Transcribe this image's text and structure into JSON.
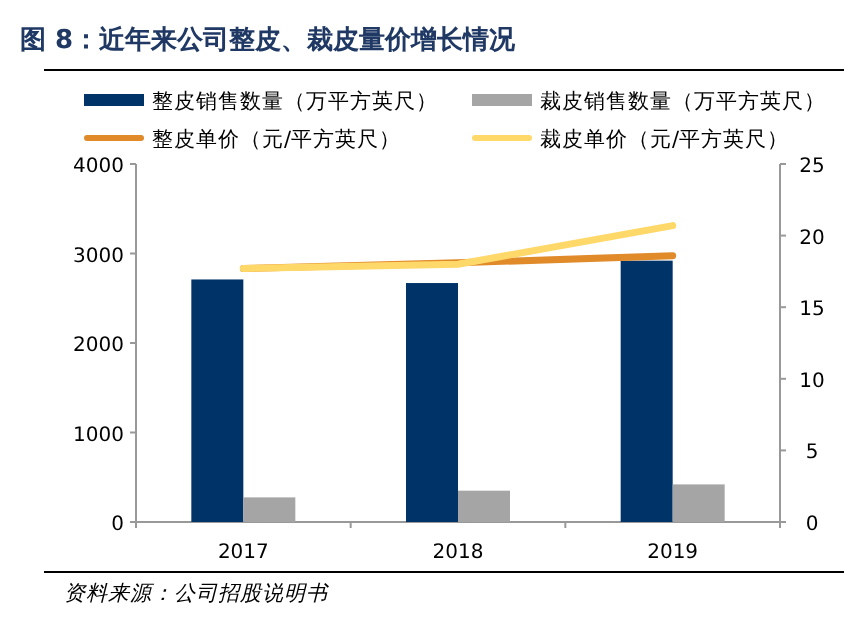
{
  "chart_data": {
    "type": "bar",
    "title": "图 8：近年来公司整皮、裁皮量价增长情况",
    "categories": [
      "2017",
      "2018",
      "2019"
    ],
    "series": [
      {
        "name": "整皮销售数量（万平方英尺）",
        "color": "#003469",
        "values": [
          2710,
          2670,
          2920
        ]
      },
      {
        "name": "裁皮销售数量（万平方英尺）",
        "color": "#a5a5a5",
        "values": [
          275,
          350,
          420
        ]
      },
      {
        "name": "整皮单价（元/平方英尺）",
        "type": "line",
        "axis": "y2",
        "color": "#e08a2a",
        "values": [
          17.7,
          18.1,
          18.6
        ]
      },
      {
        "name": "裁皮单价（元/平方英尺）",
        "type": "line",
        "axis": "y2",
        "color": "#ffd86a",
        "values": [
          17.7,
          18.0,
          20.7
        ]
      }
    ],
    "ylim": [
      0,
      4000
    ],
    "yticks": [
      0,
      1000,
      2000,
      3000,
      4000
    ],
    "y2lim": [
      0,
      25
    ],
    "y2ticks": [
      0,
      5,
      10,
      15,
      20,
      25
    ],
    "legend": "top",
    "grid": false,
    "annotations": [
      "资料来源：公司招股说明书"
    ]
  }
}
